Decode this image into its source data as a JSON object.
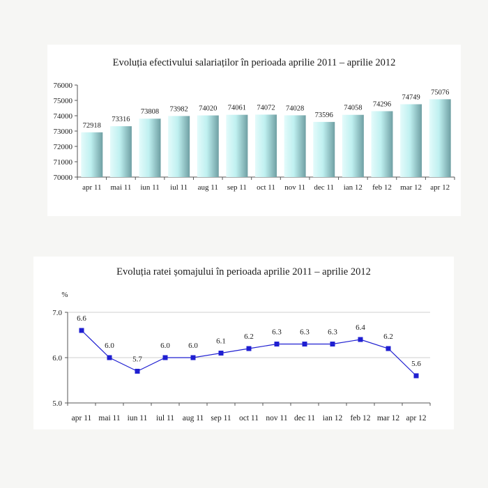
{
  "chart_data": [
    {
      "type": "bar",
      "title": "Evoluția efectivului salariaților în perioada aprilie 2011 – aprilie 2012",
      "xlabel": "",
      "ylabel": "",
      "categories": [
        "apr 11",
        "mai 11",
        "iun 11",
        "iul 11",
        "aug 11",
        "sep 11",
        "oct 11",
        "nov 11",
        "dec 11",
        "ian 12",
        "feb 12",
        "mar 12",
        "apr 12"
      ],
      "values": [
        72918,
        73316,
        73808,
        73982,
        74020,
        74061,
        74072,
        74028,
        73596,
        74058,
        74296,
        74749,
        75076
      ],
      "value_labels": [
        "72918",
        "73316",
        "73808",
        "73982",
        "74020",
        "74061",
        "74072",
        "74028",
        "73596",
        "74058",
        "74296",
        "74749",
        "75076"
      ],
      "ylim": [
        70000,
        76000
      ],
      "yticks": [
        "70000",
        "71000",
        "72000",
        "73000",
        "74000",
        "75000",
        "76000"
      ],
      "grid": false,
      "bar_color": "#bfeeee"
    },
    {
      "type": "line",
      "title": "Evoluția ratei șomajului în perioada aprilie 2011 – aprilie 2012",
      "xlabel": "",
      "ylabel": "%",
      "categories": [
        "apr 11",
        "mai 11",
        "iun 11",
        "iul 11",
        "aug 11",
        "sep 11",
        "oct 11",
        "nov 11",
        "dec 11",
        "ian 12",
        "feb 12",
        "mar 12",
        "apr 12"
      ],
      "values": [
        6.6,
        6.0,
        5.7,
        6.0,
        6.0,
        6.1,
        6.2,
        6.3,
        6.3,
        6.3,
        6.4,
        6.2,
        5.6
      ],
      "value_labels": [
        "6.6",
        "6.0",
        "5.7",
        "6.0",
        "6.0",
        "6.1",
        "6.2",
        "6.3",
        "6.3",
        "6.3",
        "6.4",
        "6.2",
        "5.6"
      ],
      "ylim": [
        5.0,
        7.0
      ],
      "yticks": [
        "5.0",
        "6.0",
        "7.0"
      ],
      "grid": true,
      "line_color": "#1f1fd1"
    }
  ]
}
